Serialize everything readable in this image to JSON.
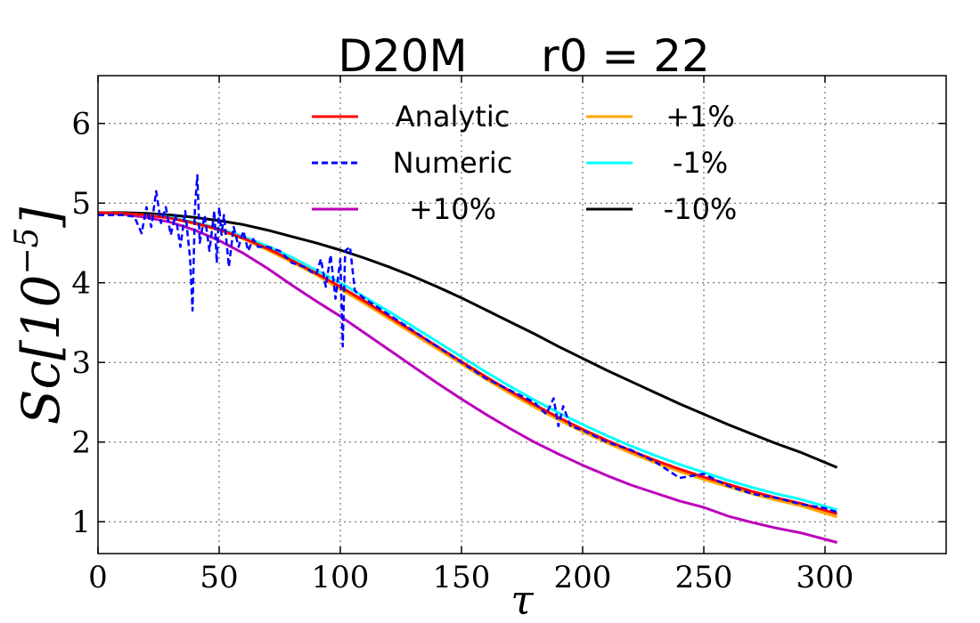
{
  "chart_data": {
    "type": "line",
    "title_left": "D20M",
    "title_right": "r0 = 22",
    "xlabel": "τ",
    "ylabel": "Sc[10",
    "ylabel_exp": "−5",
    "ylabel_close": "]",
    "xlim": [
      0,
      350
    ],
    "ylim": [
      0.6,
      6.6
    ],
    "xticks": [
      0,
      50,
      100,
      150,
      200,
      250,
      300
    ],
    "yticks": [
      1,
      2,
      3,
      4,
      5,
      6
    ],
    "grid": true,
    "legend_position": "top",
    "series": [
      {
        "name": "Analytic",
        "color": "#ff0000",
        "dash": "solid",
        "x": [
          0,
          10,
          20,
          30,
          40,
          50,
          60,
          70,
          80,
          90,
          100,
          110,
          120,
          130,
          140,
          150,
          160,
          170,
          180,
          190,
          200,
          210,
          220,
          230,
          240,
          250,
          260,
          270,
          280,
          290,
          305
        ],
        "y": [
          4.88,
          4.87,
          4.85,
          4.81,
          4.75,
          4.67,
          4.56,
          4.43,
          4.28,
          4.12,
          3.95,
          3.77,
          3.58,
          3.39,
          3.2,
          3.01,
          2.82,
          2.64,
          2.47,
          2.31,
          2.16,
          2.02,
          1.89,
          1.77,
          1.66,
          1.56,
          1.47,
          1.38,
          1.3,
          1.23,
          1.1
        ]
      },
      {
        "name": "Numeric",
        "color": "#0000ff",
        "dash": "dashed",
        "x": [
          0,
          10,
          15,
          18,
          20,
          22,
          24,
          26,
          28,
          30,
          32,
          34,
          36,
          38,
          39,
          40,
          41,
          42,
          44,
          46,
          48,
          49,
          50,
          51,
          52,
          54,
          56,
          58,
          60,
          62,
          64,
          66,
          70,
          75,
          80,
          85,
          90,
          92,
          94,
          96,
          98,
          100,
          101,
          102,
          104,
          106,
          110,
          120,
          130,
          140,
          150,
          160,
          170,
          180,
          185,
          188,
          190,
          192,
          195,
          200,
          210,
          220,
          230,
          240,
          250,
          260,
          270,
          280,
          290,
          300,
          305
        ],
        "y": [
          4.85,
          4.85,
          4.83,
          4.62,
          4.95,
          4.7,
          5.15,
          4.75,
          4.95,
          4.6,
          4.85,
          4.45,
          4.9,
          4.3,
          3.65,
          4.95,
          5.35,
          4.5,
          4.85,
          4.4,
          4.9,
          4.25,
          4.95,
          4.6,
          4.85,
          4.2,
          4.7,
          4.45,
          4.65,
          4.4,
          4.55,
          4.45,
          4.45,
          4.4,
          4.25,
          4.2,
          4.1,
          4.3,
          3.95,
          4.35,
          3.8,
          4.3,
          3.2,
          4.4,
          4.45,
          3.9,
          3.8,
          3.6,
          3.4,
          3.2,
          3.0,
          2.8,
          2.65,
          2.5,
          2.35,
          2.55,
          2.2,
          2.45,
          2.2,
          2.15,
          2.0,
          1.9,
          1.75,
          1.55,
          1.6,
          1.45,
          1.35,
          1.3,
          1.22,
          1.17,
          1.12
        ]
      },
      {
        "name": "+10%",
        "color": "#bb00bb",
        "dash": "solid",
        "x": [
          0,
          10,
          20,
          30,
          40,
          50,
          60,
          70,
          80,
          90,
          100,
          110,
          120,
          130,
          140,
          150,
          160,
          170,
          180,
          190,
          200,
          210,
          220,
          230,
          240,
          250,
          260,
          270,
          280,
          290,
          305
        ],
        "y": [
          4.88,
          4.86,
          4.82,
          4.76,
          4.66,
          4.53,
          4.37,
          4.18,
          3.97,
          3.77,
          3.58,
          3.37,
          3.16,
          2.95,
          2.74,
          2.54,
          2.35,
          2.17,
          2.0,
          1.85,
          1.71,
          1.58,
          1.46,
          1.36,
          1.26,
          1.18,
          1.07,
          0.99,
          0.92,
          0.86,
          0.74
        ]
      },
      {
        "name": "+1%",
        "color": "#ffa500",
        "dash": "solid",
        "x": [
          0,
          10,
          20,
          30,
          40,
          50,
          60,
          70,
          80,
          90,
          100,
          110,
          120,
          130,
          140,
          150,
          160,
          170,
          180,
          190,
          200,
          210,
          220,
          230,
          240,
          250,
          260,
          270,
          280,
          290,
          305
        ],
        "y": [
          4.88,
          4.87,
          4.85,
          4.81,
          4.74,
          4.66,
          4.55,
          4.41,
          4.26,
          4.1,
          3.92,
          3.74,
          3.55,
          3.36,
          3.17,
          2.98,
          2.79,
          2.61,
          2.44,
          2.28,
          2.13,
          1.99,
          1.86,
          1.74,
          1.63,
          1.53,
          1.44,
          1.35,
          1.27,
          1.2,
          1.06
        ]
      },
      {
        "name": "-1%",
        "color": "#00ffff",
        "dash": "solid",
        "x": [
          0,
          10,
          20,
          30,
          40,
          50,
          60,
          70,
          80,
          90,
          100,
          110,
          120,
          130,
          140,
          150,
          160,
          170,
          180,
          190,
          200,
          210,
          220,
          230,
          240,
          250,
          260,
          270,
          280,
          290,
          305
        ],
        "y": [
          4.88,
          4.87,
          4.85,
          4.82,
          4.76,
          4.68,
          4.58,
          4.46,
          4.32,
          4.16,
          4.0,
          3.82,
          3.64,
          3.45,
          3.26,
          3.07,
          2.88,
          2.7,
          2.53,
          2.37,
          2.22,
          2.08,
          1.95,
          1.83,
          1.72,
          1.62,
          1.52,
          1.43,
          1.35,
          1.28,
          1.15
        ]
      },
      {
        "name": "-10%",
        "color": "#000000",
        "dash": "solid",
        "x": [
          0,
          10,
          20,
          30,
          40,
          50,
          60,
          70,
          80,
          90,
          100,
          110,
          120,
          130,
          140,
          150,
          160,
          170,
          180,
          190,
          200,
          210,
          220,
          230,
          240,
          250,
          260,
          270,
          280,
          290,
          305
        ],
        "y": [
          4.88,
          4.88,
          4.87,
          4.85,
          4.82,
          4.78,
          4.73,
          4.66,
          4.58,
          4.5,
          4.41,
          4.31,
          4.2,
          4.08,
          3.95,
          3.81,
          3.66,
          3.51,
          3.36,
          3.2,
          3.05,
          2.9,
          2.76,
          2.62,
          2.48,
          2.35,
          2.22,
          2.1,
          1.98,
          1.87,
          1.68
        ]
      }
    ],
    "legend_order": [
      0,
      3,
      1,
      4,
      2,
      5
    ]
  }
}
